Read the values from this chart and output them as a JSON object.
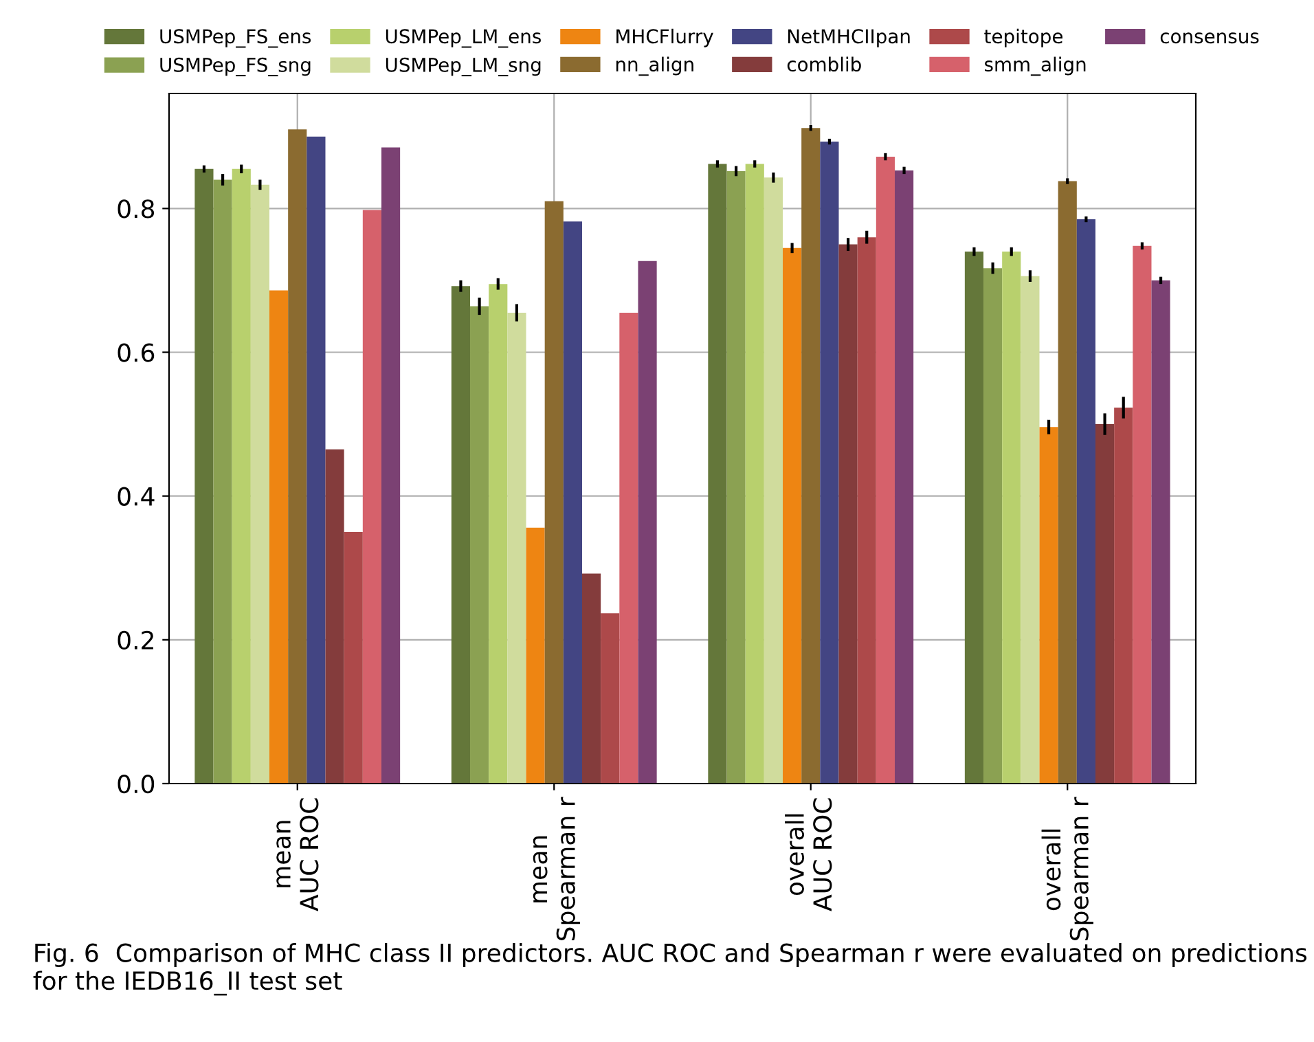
{
  "chart_data": {
    "type": "bar",
    "categories": [
      "mean\nAUC ROC",
      "mean\nSpearman r",
      "overall\nAUC ROC",
      "overall\nSpearman r"
    ],
    "ylim": [
      0,
      0.96
    ],
    "yticks": [
      {
        "value": 0,
        "label": "0.0"
      },
      0.2,
      0.4,
      0.6,
      0.8
    ],
    "grid": true,
    "legend": "top",
    "series": [
      {
        "name": "USMPep_FS_ens",
        "color": "#64773a",
        "values": [
          0.855,
          0.692,
          0.862,
          0.74
        ],
        "errors": [
          0.005,
          0.008,
          0.005,
          0.006
        ]
      },
      {
        "name": "USMPep_FS_sng",
        "color": "#8ba152",
        "values": [
          0.84,
          0.664,
          0.852,
          0.717
        ],
        "errors": [
          0.008,
          0.012,
          0.007,
          0.008
        ]
      },
      {
        "name": "USMPep_LM_ens",
        "color": "#b8d06d",
        "values": [
          0.855,
          0.695,
          0.862,
          0.74
        ],
        "errors": [
          0.006,
          0.008,
          0.005,
          0.006
        ]
      },
      {
        "name": "USMPep_LM_sng",
        "color": "#d0dc9d",
        "values": [
          0.833,
          0.655,
          0.843,
          0.706
        ],
        "errors": [
          0.007,
          0.012,
          0.007,
          0.008
        ]
      },
      {
        "name": "MHCFlurry",
        "color": "#ee8512",
        "values": [
          0.686,
          0.356,
          0.745,
          0.496
        ],
        "errors": [
          null,
          null,
          0.007,
          0.01
        ]
      },
      {
        "name": "nn_align",
        "color": "#8b6b30",
        "values": [
          0.91,
          0.81,
          0.912,
          0.838
        ],
        "errors": [
          null,
          null,
          0.004,
          0.004
        ]
      },
      {
        "name": "NetMHCIIpan",
        "color": "#434583",
        "values": [
          0.9,
          0.782,
          0.893,
          0.785
        ],
        "errors": [
          null,
          null,
          0.004,
          0.004
        ]
      },
      {
        "name": "comblib",
        "color": "#843c3c",
        "values": [
          0.465,
          0.292,
          0.75,
          0.5
        ],
        "errors": [
          null,
          null,
          0.009,
          0.015
        ]
      },
      {
        "name": "tepitope",
        "color": "#ad494a",
        "values": [
          0.35,
          0.237,
          0.76,
          0.523
        ],
        "errors": [
          null,
          null,
          0.009,
          0.015
        ]
      },
      {
        "name": "smm_align",
        "color": "#d6616b",
        "values": [
          0.798,
          0.655,
          0.872,
          0.748
        ],
        "errors": [
          null,
          null,
          0.005,
          0.005
        ]
      },
      {
        "name": "consensus",
        "color": "#7b4173",
        "values": [
          0.885,
          0.727,
          0.853,
          0.7
        ],
        "errors": [
          null,
          null,
          0.005,
          0.005
        ]
      }
    ],
    "annotations": [
      "Fig. 6  Comparison of MHC class II predictors. AUC ROC and Spearman r were evaluated on predictions for the IEDB16_II test set"
    ]
  }
}
